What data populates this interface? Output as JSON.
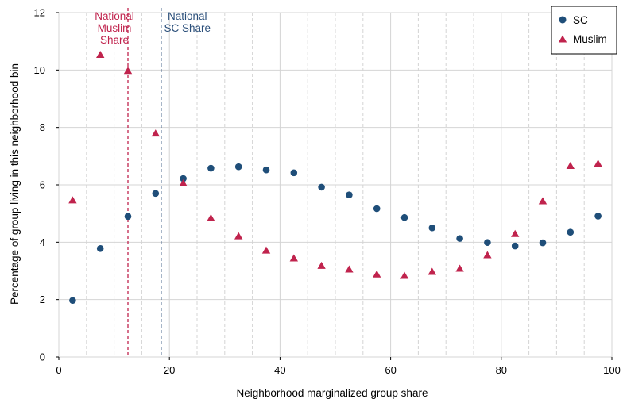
{
  "chart_data": {
    "type": "scatter",
    "xlabel": "Neighborhood marginalized group share",
    "ylabel": "Percentage of group living in this neighborhood bin",
    "xlim": [
      0,
      100
    ],
    "ylim": [
      0,
      12
    ],
    "xticks": [
      0,
      20,
      40,
      60,
      80,
      100
    ],
    "yticks": [
      0,
      2,
      4,
      6,
      8,
      10,
      12
    ],
    "grid": "major solid, minor dashed",
    "minor_xticks": [
      5,
      10,
      15,
      25,
      30,
      35,
      45,
      50,
      55,
      65,
      70,
      75,
      85,
      90,
      95
    ],
    "legend_position": "top-right",
    "x": [
      2.5,
      7.5,
      12.5,
      17.5,
      22.5,
      27.5,
      32.5,
      37.5,
      42.5,
      47.5,
      52.5,
      57.5,
      62.5,
      67.5,
      72.5,
      77.5,
      82.5,
      87.5,
      92.5,
      97.5
    ],
    "series": [
      {
        "name": "SC",
        "marker": "circle",
        "color": "#1f4e79",
        "values": [
          1.97,
          3.78,
          4.9,
          5.7,
          6.22,
          6.58,
          6.63,
          6.52,
          6.42,
          5.92,
          5.65,
          5.17,
          4.86,
          4.5,
          4.13,
          3.99,
          3.87,
          3.98,
          4.35,
          4.91
        ]
      },
      {
        "name": "Muslim",
        "marker": "triangle",
        "color": "#c0234d",
        "values": [
          5.45,
          10.52,
          9.96,
          7.78,
          6.04,
          4.83,
          4.2,
          3.7,
          3.43,
          3.17,
          3.04,
          2.87,
          2.82,
          2.96,
          3.07,
          3.54,
          4.28,
          5.42,
          6.65,
          6.73
        ]
      }
    ],
    "reference_lines": [
      {
        "x": 12.5,
        "label": "National Muslim Share",
        "label_lines": [
          "National",
          "Muslim",
          "Share"
        ],
        "color": "#c0234d"
      },
      {
        "x": 18.5,
        "label": "National SC Share",
        "label_lines": [
          "National",
          "SC Share"
        ],
        "color": "#2b4f7a"
      }
    ]
  }
}
